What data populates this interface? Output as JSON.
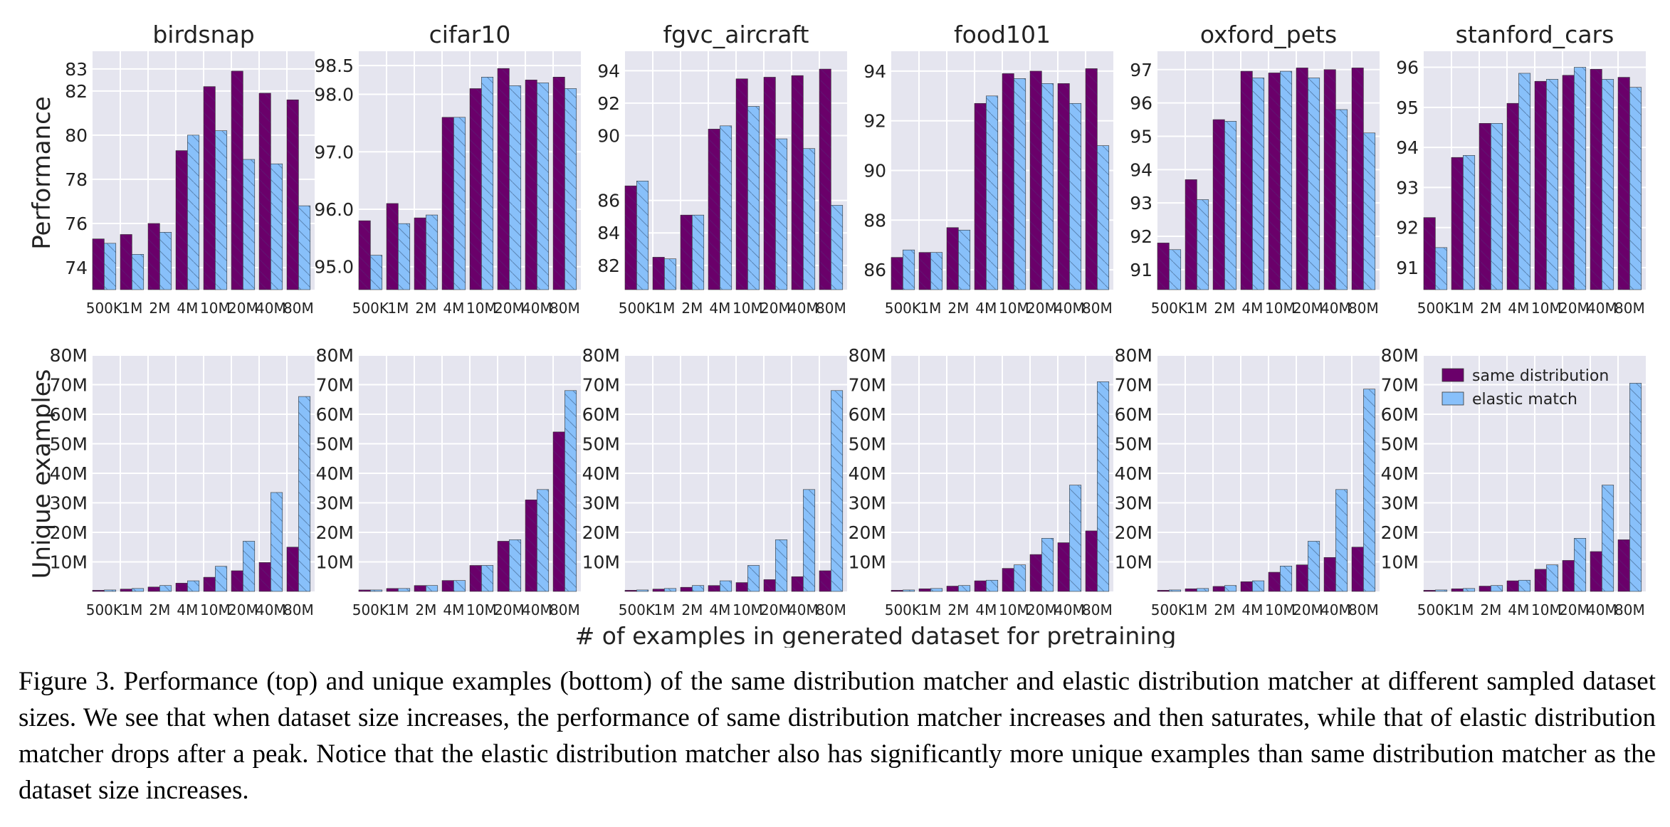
{
  "figure": {
    "xlabel": "# of examples in generated dataset for pretraining",
    "ylabel_top": "Performance",
    "ylabel_bottom": "Unique examples",
    "caption": "Figure 3. Performance (top) and unique examples (bottom) of the same distribution matcher and elastic distribution matcher at different sampled dataset sizes. We see that when dataset size increases, the performance of same distribution matcher increases and then saturates, while that of elastic distribution matcher drops after a peak. Notice that the elastic distribution matcher also has significantly more unique examples than same distribution matcher as the dataset size increases."
  },
  "colors": {
    "same": "#6a006a",
    "elastic": "#88c0fa",
    "panel_bg": "#e5e5ef",
    "grid": "#ffffff"
  },
  "legend": {
    "placement": "upper-left",
    "entries": [
      "same distribution",
      "elastic match"
    ]
  },
  "chart_data": [
    {
      "type": "bar",
      "title": "birdsnap",
      "row": "performance",
      "ylabel": "Performance",
      "categories": [
        "500K",
        "1M",
        "2M",
        "4M",
        "10M",
        "20M",
        "40M",
        "80M"
      ],
      "ylim": [
        73,
        83.8
      ],
      "yticks": [
        74,
        76,
        78,
        80,
        82,
        83
      ],
      "grid": true,
      "series": [
        {
          "name": "same distribution",
          "values": [
            75.3,
            75.5,
            76.0,
            79.3,
            82.2,
            82.9,
            81.9,
            81.6
          ]
        },
        {
          "name": "elastic match",
          "values": [
            75.1,
            74.6,
            75.6,
            80.0,
            80.2,
            78.9,
            78.7,
            76.8
          ]
        }
      ]
    },
    {
      "type": "bar",
      "title": "cifar10",
      "row": "performance",
      "categories": [
        "500K",
        "1M",
        "2M",
        "4M",
        "10M",
        "20M",
        "40M",
        "80M"
      ],
      "ylim": [
        94.6,
        98.75
      ],
      "yticks": [
        95.0,
        96.0,
        97.0,
        98.0,
        98.5
      ],
      "grid": true,
      "series": [
        {
          "name": "same distribution",
          "values": [
            95.8,
            96.1,
            95.85,
            97.6,
            98.1,
            98.45,
            98.25,
            98.3
          ]
        },
        {
          "name": "elastic match",
          "values": [
            95.2,
            95.75,
            95.9,
            97.6,
            98.3,
            98.15,
            98.2,
            98.1
          ]
        }
      ]
    },
    {
      "type": "bar",
      "title": "fgvc_aircraft",
      "row": "performance",
      "categories": [
        "500K",
        "1M",
        "2M",
        "4M",
        "10M",
        "20M",
        "40M",
        "80M"
      ],
      "ylim": [
        80.5,
        95.2
      ],
      "yticks": [
        82,
        84,
        86,
        90,
        92,
        94
      ],
      "grid": true,
      "series": [
        {
          "name": "same distribution",
          "values": [
            86.9,
            82.5,
            85.1,
            90.4,
            93.5,
            93.6,
            93.7,
            94.1
          ]
        },
        {
          "name": "elastic match",
          "values": [
            87.2,
            82.4,
            85.1,
            90.6,
            91.8,
            89.8,
            89.2,
            85.7
          ]
        }
      ]
    },
    {
      "type": "bar",
      "title": "food101",
      "row": "performance",
      "categories": [
        "500K",
        "1M",
        "2M",
        "4M",
        "10M",
        "20M",
        "40M",
        "80M"
      ],
      "ylim": [
        85.2,
        94.8
      ],
      "yticks": [
        86,
        88,
        90,
        92,
        94
      ],
      "grid": true,
      "series": [
        {
          "name": "same distribution",
          "values": [
            86.5,
            86.7,
            87.7,
            92.7,
            93.9,
            94.0,
            93.5,
            94.1
          ]
        },
        {
          "name": "elastic match",
          "values": [
            86.8,
            86.7,
            87.6,
            93.0,
            93.7,
            93.5,
            92.7,
            91.0
          ]
        }
      ]
    },
    {
      "type": "bar",
      "title": "oxford_pets",
      "row": "performance",
      "categories": [
        "500K",
        "1M",
        "2M",
        "4M",
        "10M",
        "20M",
        "40M",
        "80M"
      ],
      "ylim": [
        90.4,
        97.55
      ],
      "yticks": [
        91,
        92,
        93,
        94,
        95,
        96,
        97
      ],
      "grid": true,
      "series": [
        {
          "name": "same distribution",
          "values": [
            91.8,
            93.7,
            95.5,
            96.95,
            96.9,
            97.05,
            97.0,
            97.05
          ]
        },
        {
          "name": "elastic match",
          "values": [
            91.6,
            93.1,
            95.45,
            96.75,
            96.95,
            96.75,
            95.8,
            95.1
          ]
        }
      ]
    },
    {
      "type": "bar",
      "title": "stanford_cars",
      "row": "performance",
      "categories": [
        "500K",
        "1M",
        "2M",
        "4M",
        "10M",
        "20M",
        "40M",
        "80M"
      ],
      "ylim": [
        90.45,
        96.4
      ],
      "yticks": [
        91,
        92,
        93,
        94,
        95,
        96
      ],
      "grid": true,
      "series": [
        {
          "name": "same distribution",
          "values": [
            92.25,
            93.75,
            94.6,
            95.1,
            95.65,
            95.8,
            95.95,
            95.75
          ]
        },
        {
          "name": "elastic match",
          "values": [
            91.5,
            93.8,
            94.6,
            95.85,
            95.7,
            96.0,
            95.7,
            95.5
          ]
        }
      ]
    },
    {
      "type": "bar",
      "title": "",
      "row": "unique",
      "ylabel": "Unique examples",
      "categories": [
        "500K",
        "1M",
        "2M",
        "4M",
        "10M",
        "20M",
        "40M",
        "80M"
      ],
      "ylim": [
        0,
        80
      ],
      "yticks": [
        "10M",
        "20M",
        "30M",
        "40M",
        "50M",
        "60M",
        "70M",
        "80M"
      ],
      "grid": true,
      "series": [
        {
          "name": "same distribution",
          "values": [
            0.4,
            0.8,
            1.5,
            2.8,
            4.8,
            7.0,
            9.8,
            15.0
          ]
        },
        {
          "name": "elastic match",
          "values": [
            0.5,
            1.0,
            2.0,
            3.6,
            8.5,
            17.0,
            33.5,
            66.0
          ]
        }
      ]
    },
    {
      "type": "bar",
      "title": "",
      "row": "unique",
      "categories": [
        "500K",
        "1M",
        "2M",
        "4M",
        "10M",
        "20M",
        "40M",
        "80M"
      ],
      "ylim": [
        0,
        80
      ],
      "yticks": [
        "10M",
        "20M",
        "30M",
        "40M",
        "50M",
        "60M",
        "70M",
        "80M"
      ],
      "grid": true,
      "series": [
        {
          "name": "same distribution",
          "values": [
            0.5,
            1.0,
            2.0,
            3.7,
            8.8,
            17.0,
            31.0,
            54.0
          ]
        },
        {
          "name": "elastic match",
          "values": [
            0.5,
            1.0,
            2.0,
            3.7,
            8.8,
            17.5,
            34.5,
            68.0
          ]
        }
      ]
    },
    {
      "type": "bar",
      "title": "",
      "row": "unique",
      "categories": [
        "500K",
        "1M",
        "2M",
        "4M",
        "10M",
        "20M",
        "40M",
        "80M"
      ],
      "ylim": [
        0,
        80
      ],
      "yticks": [
        "10M",
        "20M",
        "30M",
        "40M",
        "50M",
        "60M",
        "70M",
        "80M"
      ],
      "grid": true,
      "series": [
        {
          "name": "same distribution",
          "values": [
            0.4,
            0.8,
            1.4,
            2.0,
            3.0,
            4.0,
            5.0,
            7.0
          ]
        },
        {
          "name": "elastic match",
          "values": [
            0.5,
            1.0,
            2.0,
            3.6,
            8.8,
            17.5,
            34.5,
            68.0
          ]
        }
      ]
    },
    {
      "type": "bar",
      "title": "",
      "row": "unique",
      "categories": [
        "500K",
        "1M",
        "2M",
        "4M",
        "10M",
        "20M",
        "40M",
        "80M"
      ],
      "ylim": [
        0,
        80
      ],
      "yticks": [
        "10M",
        "20M",
        "30M",
        "40M",
        "50M",
        "60M",
        "70M",
        "80M"
      ],
      "grid": true,
      "series": [
        {
          "name": "same distribution",
          "values": [
            0.4,
            0.9,
            1.8,
            3.6,
            7.8,
            12.5,
            16.5,
            20.5
          ]
        },
        {
          "name": "elastic match",
          "values": [
            0.5,
            1.0,
            2.0,
            3.8,
            9.0,
            18.0,
            36.0,
            71.0
          ]
        }
      ]
    },
    {
      "type": "bar",
      "title": "",
      "row": "unique",
      "categories": [
        "500K",
        "1M",
        "2M",
        "4M",
        "10M",
        "20M",
        "40M",
        "80M"
      ],
      "ylim": [
        0,
        80
      ],
      "yticks": [
        "10M",
        "20M",
        "30M",
        "40M",
        "50M",
        "60M",
        "70M",
        "80M"
      ],
      "grid": true,
      "series": [
        {
          "name": "same distribution",
          "values": [
            0.4,
            0.9,
            1.7,
            3.3,
            6.5,
            9.0,
            11.5,
            15.0
          ]
        },
        {
          "name": "elastic match",
          "values": [
            0.5,
            1.0,
            2.0,
            3.6,
            8.6,
            17.0,
            34.5,
            68.5
          ]
        }
      ]
    },
    {
      "type": "bar",
      "title": "",
      "row": "unique",
      "categories": [
        "500K",
        "1M",
        "2M",
        "4M",
        "10M",
        "20M",
        "40M",
        "80M"
      ],
      "ylim": [
        0,
        80
      ],
      "yticks": [
        "10M",
        "20M",
        "30M",
        "40M",
        "50M",
        "60M",
        "70M",
        "80M"
      ],
      "grid": true,
      "series": [
        {
          "name": "same distribution",
          "values": [
            0.4,
            0.9,
            1.8,
            3.6,
            7.5,
            10.5,
            13.5,
            17.5
          ]
        },
        {
          "name": "elastic match",
          "values": [
            0.5,
            1.0,
            2.0,
            3.8,
            9.0,
            18.0,
            36.0,
            70.5
          ]
        }
      ]
    }
  ]
}
